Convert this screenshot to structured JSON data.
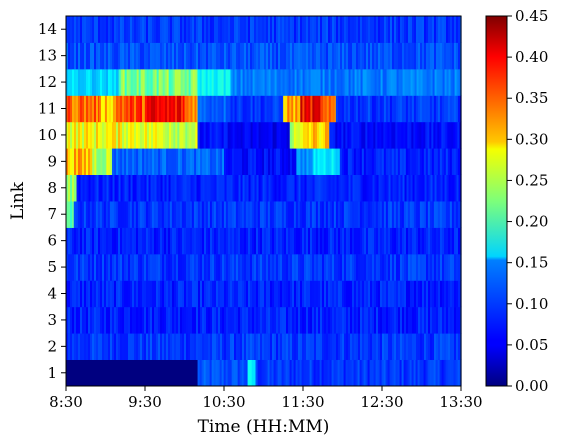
{
  "chart_data": {
    "type": "heatmap",
    "title": "",
    "xlabel": "Time (HH:MM)",
    "ylabel": "Link",
    "x_tick_labels": [
      "8:30",
      "9:30",
      "10:30",
      "11:30",
      "12:30",
      "13:30"
    ],
    "y_categories": [
      "1",
      "2",
      "3",
      "4",
      "5",
      "6",
      "7",
      "8",
      "9",
      "10",
      "11",
      "12",
      "13",
      "14"
    ],
    "colormap": "jet",
    "vmin": 0.0,
    "vmax": 0.45,
    "colorbar_ticks": [
      "0.00",
      "0.05",
      "0.10",
      "0.15",
      "0.20",
      "0.25",
      "0.30",
      "0.35",
      "0.40",
      "0.45"
    ],
    "grid": false,
    "time_start_min": 0,
    "time_end_min": 300,
    "rows": [
      {
        "link": "1",
        "segments": [
          [
            0,
            100,
            0.0
          ],
          [
            100,
            138,
            0.09
          ],
          [
            138,
            144,
            0.16
          ],
          [
            144,
            300,
            0.08
          ]
        ]
      },
      {
        "link": "2",
        "segments": [
          [
            0,
            300,
            0.08
          ]
        ]
      },
      {
        "link": "3",
        "segments": [
          [
            0,
            300,
            0.07
          ]
        ]
      },
      {
        "link": "4",
        "segments": [
          [
            0,
            300,
            0.07
          ]
        ]
      },
      {
        "link": "5",
        "segments": [
          [
            0,
            300,
            0.08
          ]
        ]
      },
      {
        "link": "6",
        "segments": [
          [
            0,
            300,
            0.07
          ]
        ]
      },
      {
        "link": "7",
        "segments": [
          [
            0,
            6,
            0.2
          ],
          [
            6,
            300,
            0.08
          ]
        ]
      },
      {
        "link": "8",
        "segments": [
          [
            0,
            8,
            0.24
          ],
          [
            8,
            300,
            0.07
          ]
        ]
      },
      {
        "link": "9",
        "segments": [
          [
            0,
            20,
            0.31
          ],
          [
            20,
            35,
            0.25
          ],
          [
            35,
            120,
            0.1
          ],
          [
            120,
            175,
            0.06
          ],
          [
            175,
            188,
            0.12
          ],
          [
            188,
            208,
            0.16
          ],
          [
            208,
            300,
            0.07
          ]
        ]
      },
      {
        "link": "10",
        "segments": [
          [
            0,
            60,
            0.28
          ],
          [
            60,
            80,
            0.27
          ],
          [
            80,
            100,
            0.26
          ],
          [
            100,
            125,
            0.06
          ],
          [
            125,
            170,
            0.05
          ],
          [
            170,
            180,
            0.25
          ],
          [
            180,
            200,
            0.3
          ],
          [
            200,
            300,
            0.06
          ]
        ]
      },
      {
        "link": "11",
        "segments": [
          [
            0,
            25,
            0.35
          ],
          [
            25,
            38,
            0.31
          ],
          [
            38,
            60,
            0.36
          ],
          [
            60,
            90,
            0.39
          ],
          [
            90,
            100,
            0.34
          ],
          [
            100,
            125,
            0.1
          ],
          [
            125,
            165,
            0.08
          ],
          [
            165,
            178,
            0.32
          ],
          [
            178,
            195,
            0.39
          ],
          [
            195,
            205,
            0.33
          ],
          [
            205,
            300,
            0.08
          ]
        ]
      },
      {
        "link": "12",
        "segments": [
          [
            0,
            40,
            0.15
          ],
          [
            40,
            100,
            0.22
          ],
          [
            100,
            125,
            0.17
          ],
          [
            125,
            300,
            0.11
          ]
        ]
      },
      {
        "link": "13",
        "segments": [
          [
            0,
            300,
            0.09
          ]
        ]
      },
      {
        "link": "14",
        "segments": [
          [
            0,
            300,
            0.08
          ]
        ]
      }
    ]
  }
}
